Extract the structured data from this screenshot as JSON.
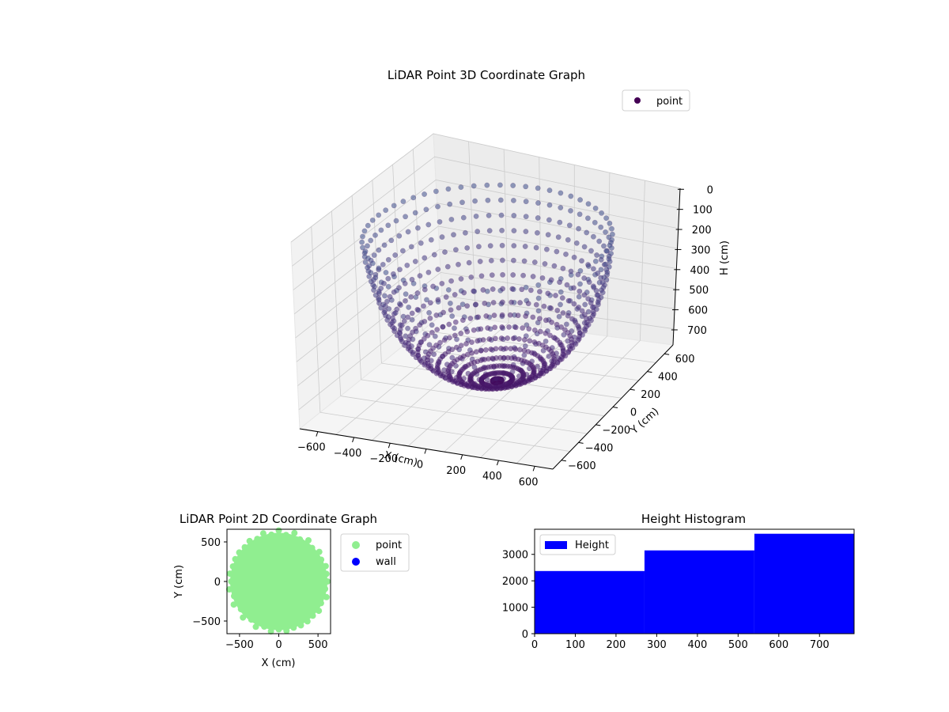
{
  "colors": {
    "background": "#ffffff",
    "pane_fill": "#f2f2f2",
    "grid": "#cccccc",
    "viridis_dark": "#440154",
    "viridis_purple": "#482878",
    "viridis_blue": "#3e4a89",
    "viridis_teal": "#31688e",
    "viridis_green": "#35b779",
    "point_2d": "#90ee90",
    "wall_2d": "#0000ff",
    "histogram": "#0000ff"
  },
  "chart_data": [
    {
      "id": "lidar-3d",
      "type": "scatter",
      "title": "LiDAR Point 3D Coordinate Graph",
      "xlabel": "X (cm)",
      "ylabel": "Y (cm)",
      "zlabel": "H (cm)",
      "x_ticks": [
        "−600",
        "−400",
        "−200",
        "0",
        "200",
        "400",
        "600"
      ],
      "y_ticks": [
        "−600",
        "−400",
        "−200",
        "0",
        "200",
        "400",
        "600"
      ],
      "z_ticks": [
        "0",
        "100",
        "200",
        "300",
        "400",
        "500",
        "600",
        "700"
      ],
      "xlim": [
        -700,
        700
      ],
      "ylim": [
        -700,
        700
      ],
      "zlim": [
        0,
        780
      ],
      "z_inverted": true,
      "legend": [
        {
          "label": "point",
          "color": "#440154"
        }
      ],
      "legend_position": "top-right",
      "grid": true,
      "series": [
        {
          "name": "point",
          "description_shape": "hemispherical shell of radius ~620 cm opening upward (H increases with depth), colored by H with viridis"
        }
      ]
    },
    {
      "id": "lidar-2d",
      "type": "scatter",
      "title": "LiDAR Point 2D Coordinate Graph",
      "xlabel": "X (cm)",
      "ylabel": "Y (cm)",
      "x_ticks": [
        "−500",
        "0",
        "500"
      ],
      "y_ticks": [
        "−500",
        "0",
        "500"
      ],
      "xlim": [
        -660,
        660
      ],
      "ylim": [
        -660,
        660
      ],
      "legend": [
        {
          "label": "point",
          "color": "#90ee90"
        },
        {
          "label": "wall",
          "color": "#0000ff"
        }
      ],
      "legend_position": "outside-right",
      "series": [
        {
          "name": "point",
          "radius": 620
        },
        {
          "name": "wall",
          "values": []
        }
      ]
    },
    {
      "id": "height-histogram",
      "type": "bar",
      "title": "Height Histogram",
      "xlabel": "",
      "ylabel": "",
      "x_ticks": [
        "0",
        "100",
        "200",
        "300",
        "400",
        "500",
        "600",
        "700"
      ],
      "y_ticks": [
        "0",
        "1000",
        "2000",
        "3000"
      ],
      "xlim": [
        0,
        785
      ],
      "ylim": [
        0,
        3950
      ],
      "legend": [
        {
          "label": "Height",
          "color": "#0000ff"
        }
      ],
      "legend_position": "top-left",
      "bins": [
        {
          "start": 0,
          "end": 270,
          "count": 2370
        },
        {
          "start": 270,
          "end": 540,
          "count": 3150
        },
        {
          "start": 540,
          "end": 785,
          "count": 3780
        }
      ]
    }
  ]
}
